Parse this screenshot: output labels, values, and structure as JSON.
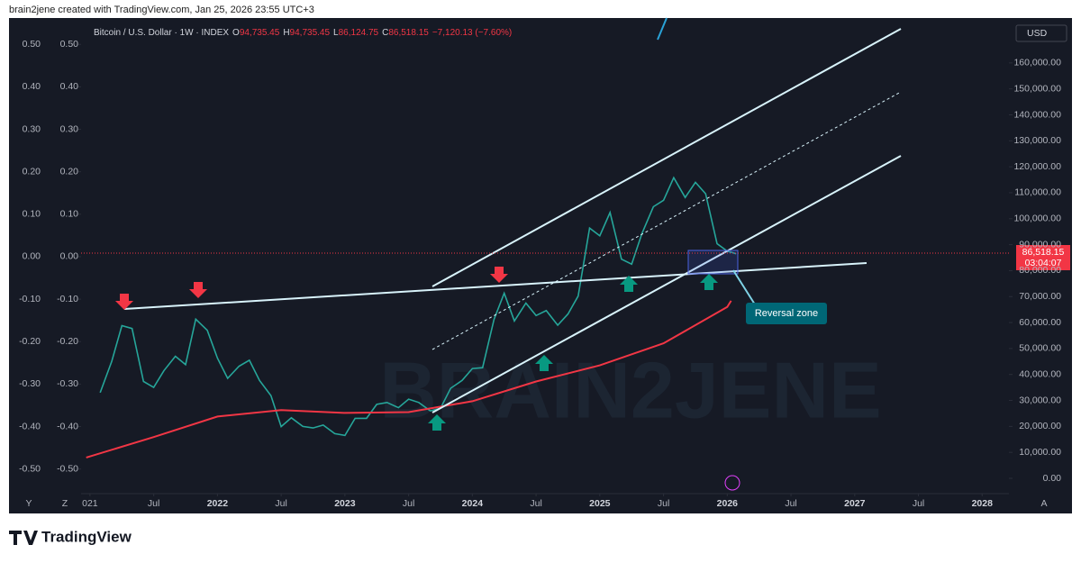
{
  "header": {
    "caption": "brain2jene created with TradingView.com, Jan 25, 2026 23:55 UTC+3"
  },
  "footer": {
    "brand": "TradingView"
  },
  "legend": {
    "symbol": "Bitcoin / U.S. Dollar · 1W · INDEX",
    "ohlc": [
      {
        "key": "O",
        "value": "94,735.45"
      },
      {
        "key": "H",
        "value": "94,735.45"
      },
      {
        "key": "L",
        "value": "86,124.75"
      },
      {
        "key": "C",
        "value": "86,518.15"
      }
    ],
    "change": "−7,120.13 (−7.60%)"
  },
  "currency": "USD",
  "price_label": {
    "price": "86,518.15",
    "countdown": "03:04:07"
  },
  "annotation": "Reversal zone",
  "watermark": "BRAIN2JENE",
  "buttons": {
    "left": [
      "Y",
      "Z"
    ],
    "right": "A"
  },
  "chart_data": {
    "type": "line",
    "xlim": [
      2020.93,
      2028.21
    ],
    "xticks": [
      {
        "value": 2021,
        "label": "021"
      },
      {
        "value": 2021.5,
        "label": "Jul"
      },
      2022,
      {
        "value": 2022.5,
        "label": "Jul"
      },
      2023,
      {
        "value": 2023.5,
        "label": "Jul"
      },
      2024,
      {
        "value": 2024.5,
        "label": "Jul"
      },
      2025,
      {
        "value": 2025.5,
        "label": "Jul"
      },
      2026,
      {
        "value": 2026.5,
        "label": "Jul"
      },
      2027,
      {
        "value": 2027.5,
        "label": "Jul"
      },
      2028
    ],
    "ylim": [
      -5900,
      177300
    ],
    "yticks": [
      {
        "value": 0,
        "label": "0.00"
      },
      {
        "value": 10000,
        "label": "10,000.00"
      },
      {
        "value": 20000,
        "label": "20,000.00"
      },
      {
        "value": 30000,
        "label": "30,000.00"
      },
      {
        "value": 40000,
        "label": "40,000.00"
      },
      {
        "value": 50000,
        "label": "50,000.00"
      },
      {
        "value": 60000,
        "label": "60,000.00"
      },
      {
        "value": 70000,
        "label": "70,000.00"
      },
      {
        "value": 80000,
        "label": "80,000.00"
      },
      {
        "value": 90000,
        "label": "90,000.00"
      },
      {
        "value": 100000,
        "label": "100,000.00"
      },
      {
        "value": 110000,
        "label": "110,000.00"
      },
      {
        "value": 120000,
        "label": "120,000.00"
      },
      {
        "value": 130000,
        "label": "130,000.00"
      },
      {
        "value": 140000,
        "label": "140,000.00"
      },
      {
        "value": 150000,
        "label": "150,000.00"
      },
      {
        "value": 160000,
        "label": "160,000.00"
      }
    ],
    "y2lim": [
      -0.558,
      0.562
    ],
    "y2ticks": [
      {
        "value": 0.5,
        "label": "0.50"
      },
      {
        "value": 0.4,
        "label": "0.40"
      },
      {
        "value": 0.3,
        "label": "0.30"
      },
      {
        "value": 0.2,
        "label": "0.20"
      },
      {
        "value": 0.1,
        "label": "0.10"
      },
      {
        "value": 0,
        "label": "0.00"
      },
      {
        "value": -0.1,
        "label": "-0.10"
      },
      {
        "value": -0.2,
        "label": "-0.20"
      },
      {
        "value": -0.3,
        "label": "-0.30"
      },
      {
        "value": -0.4,
        "label": "-0.40"
      },
      {
        "value": -0.5,
        "label": "-0.50"
      }
    ],
    "series": [
      {
        "name": "Bitcoin / U.S. Dollar",
        "color": "#26a69a",
        "x": [
          2021.08,
          2021.17,
          2021.25,
          2021.33,
          2021.42,
          2021.5,
          2021.58,
          2021.67,
          2021.75,
          2021.83,
          2021.92,
          2022.0,
          2022.08,
          2022.17,
          2022.25,
          2022.33,
          2022.42,
          2022.5,
          2022.58,
          2022.67,
          2022.75,
          2022.83,
          2022.92,
          2023.0,
          2023.08,
          2023.17,
          2023.25,
          2023.33,
          2023.42,
          2023.5,
          2023.58,
          2023.67,
          2023.75,
          2023.83,
          2023.92,
          2024.0,
          2024.08,
          2024.17,
          2024.25,
          2024.33,
          2024.42,
          2024.5,
          2024.58,
          2024.67,
          2024.75,
          2024.83,
          2024.92,
          2025.0,
          2025.08,
          2025.17,
          2025.25,
          2025.33,
          2025.42,
          2025.5,
          2025.58,
          2025.67,
          2025.75,
          2025.83,
          2025.92,
          2026.0,
          2026.07
        ],
        "values": [
          33000,
          45000,
          58800,
          57700,
          37300,
          35000,
          41500,
          47000,
          43800,
          61300,
          57000,
          46300,
          38500,
          43200,
          45500,
          37700,
          31800,
          19900,
          23300,
          20000,
          19400,
          20500,
          17200,
          16500,
          23100,
          23100,
          28500,
          29200,
          27200,
          30500,
          29200,
          26000,
          27000,
          34700,
          37700,
          42300,
          42600,
          61200,
          71300,
          60600,
          67500,
          62700,
          64600,
          59000,
          63300,
          70200,
          96400,
          93400,
          102400,
          84400,
          82500,
          94200,
          104600,
          107100,
          115800,
          108200,
          114000,
          109600,
          90400,
          87500,
          86500
        ]
      },
      {
        "name": "Moving average",
        "color": "#f23645",
        "x": [
          2020.97,
          2021.5,
          2022.0,
          2022.5,
          2023.0,
          2023.5,
          2024.0,
          2024.5,
          2025.0,
          2025.5,
          2026.0,
          2026.03
        ],
        "values": [
          8000,
          15900,
          23800,
          26300,
          25200,
          25500,
          29700,
          37300,
          43500,
          52000,
          66000,
          68400
        ]
      }
    ]
  }
}
